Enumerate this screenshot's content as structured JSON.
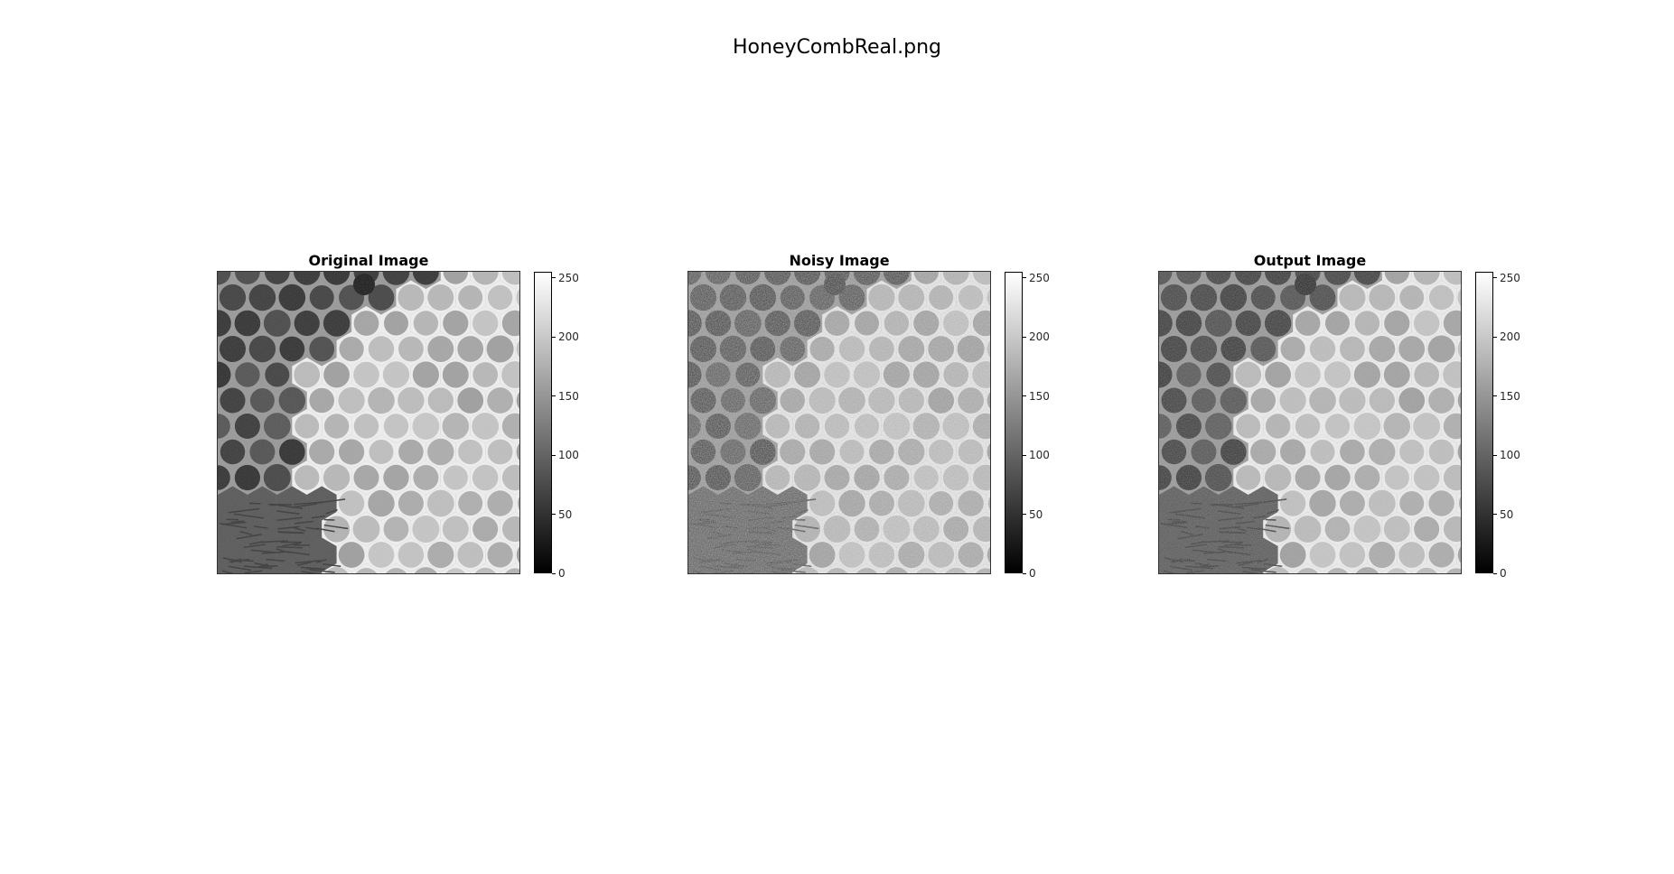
{
  "figure": {
    "title": "HoneyCombReal.png"
  },
  "panels": [
    {
      "title": "Original Image",
      "variant": "original"
    },
    {
      "title": "Noisy Image",
      "variant": "noisy"
    },
    {
      "title": "Output Image",
      "variant": "output"
    }
  ],
  "colorbar": {
    "ticks": [
      "0",
      "50",
      "100",
      "150",
      "200",
      "250"
    ],
    "range": [
      0,
      255
    ],
    "colormap": "gray"
  }
}
